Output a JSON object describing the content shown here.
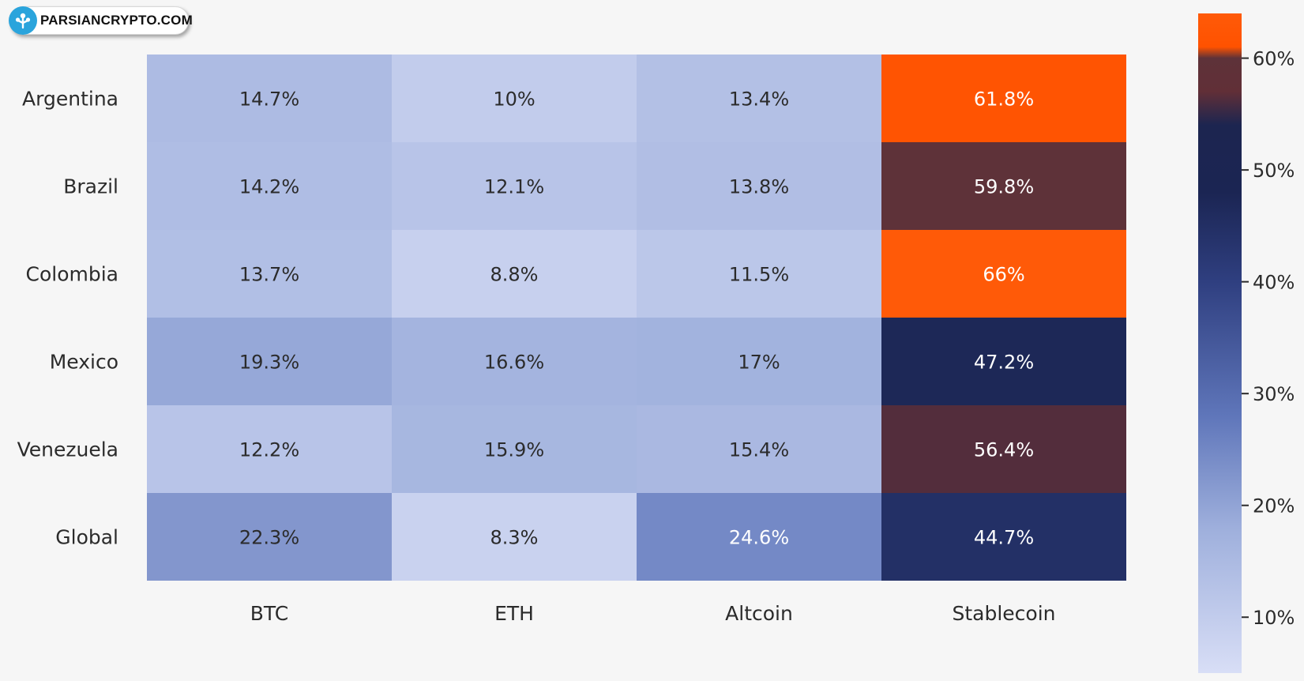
{
  "logo": {
    "text": "PARSIANCRYPTO.COM"
  },
  "chart_data": {
    "type": "heatmap",
    "rows": [
      "Argentina",
      "Brazil",
      "Colombia",
      "Mexico",
      "Venezuela",
      "Global"
    ],
    "columns": [
      "BTC",
      "ETH",
      "Altcoin",
      "Stablecoin"
    ],
    "values": [
      [
        14.7,
        10,
        13.4,
        61.8
      ],
      [
        14.2,
        12.1,
        13.8,
        59.8
      ],
      [
        13.7,
        8.8,
        11.5,
        66
      ],
      [
        19.3,
        16.6,
        17,
        47.2
      ],
      [
        12.2,
        15.9,
        15.4,
        56.4
      ],
      [
        22.3,
        8.3,
        24.6,
        44.7
      ]
    ],
    "labels": [
      [
        "14.7%",
        "10%",
        "13.4%",
        "61.8%"
      ],
      [
        "14.2%",
        "12.1%",
        "13.8%",
        "59.8%"
      ],
      [
        "13.7%",
        "8.8%",
        "11.5%",
        "66%"
      ],
      [
        "19.3%",
        "16.6%",
        "17%",
        "47.2%"
      ],
      [
        "12.2%",
        "15.9%",
        "15.4%",
        "56.4%"
      ],
      [
        "22.3%",
        "8.3%",
        "24.6%",
        "44.7%"
      ]
    ],
    "colorbar": {
      "range": [
        5,
        64
      ],
      "ticks": [
        10,
        20,
        30,
        40,
        50,
        60
      ],
      "tick_labels": [
        "10%",
        "20%",
        "30%",
        "40%",
        "50%",
        "60%"
      ],
      "stops": [
        {
          "value": 5,
          "color": "#d8def6"
        },
        {
          "value": 18,
          "color": "#9eafdc"
        },
        {
          "value": 28,
          "color": "#5f76ba"
        },
        {
          "value": 40,
          "color": "#2f3f80"
        },
        {
          "value": 48,
          "color": "#1b2553"
        },
        {
          "value": 54,
          "color": "#1c2550"
        },
        {
          "value": 57,
          "color": "#612f37"
        },
        {
          "value": 60,
          "color": "#5e3239"
        },
        {
          "value": 61,
          "color": "#ff5200"
        },
        {
          "value": 64,
          "color": "#ff5a08"
        }
      ]
    }
  }
}
